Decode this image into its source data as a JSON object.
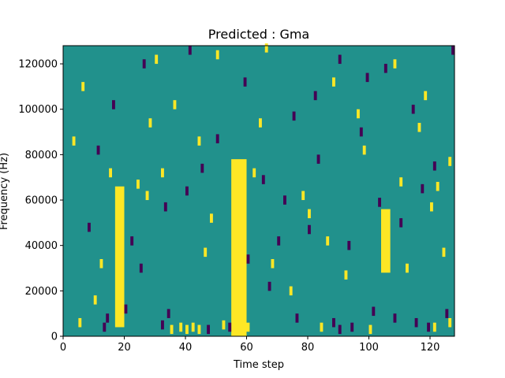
{
  "chart_data": {
    "type": "heatmap",
    "title": "Predicted : Gma",
    "xlabel": "Time step",
    "ylabel": "Frequency (Hz)",
    "xlim": [
      0,
      128
    ],
    "ylim": [
      0,
      128000
    ],
    "x_ticks": [
      0,
      20,
      40,
      60,
      80,
      100,
      120
    ],
    "y_ticks": [
      0,
      20000,
      40000,
      60000,
      80000,
      100000,
      120000
    ],
    "x_tick_labels": [
      "0",
      "20",
      "40",
      "60",
      "80",
      "100",
      "120"
    ],
    "y_tick_labels": [
      "0",
      "20000",
      "40000",
      "60000",
      "80000",
      "100000",
      "120000"
    ],
    "colormap": {
      "background": "#21918c",
      "high": "#fde725",
      "low": "#440154"
    },
    "background_level": "mid",
    "high_bands": [
      {
        "x": [
          17,
          19
        ],
        "y": [
          4000,
          66000
        ]
      },
      {
        "x": [
          55,
          59
        ],
        "y": [
          0,
          78000
        ]
      },
      {
        "x": [
          104,
          106
        ],
        "y": [
          28000,
          56000
        ]
      }
    ],
    "high_cells": [
      [
        5,
        4000
      ],
      [
        35,
        1000
      ],
      [
        38,
        2000
      ],
      [
        40,
        1000
      ],
      [
        42,
        2000
      ],
      [
        44,
        1000
      ],
      [
        52,
        3000
      ],
      [
        60,
        2000
      ],
      [
        84,
        2000
      ],
      [
        100,
        1000
      ],
      [
        121,
        2000
      ],
      [
        126,
        4000
      ],
      [
        12,
        30000
      ],
      [
        24,
        65000
      ],
      [
        28,
        92000
      ],
      [
        32,
        70000
      ],
      [
        46,
        35000
      ],
      [
        48,
        50000
      ],
      [
        62,
        70000
      ],
      [
        64,
        92000
      ],
      [
        68,
        30000
      ],
      [
        78,
        60000
      ],
      [
        86,
        40000
      ],
      [
        92,
        25000
      ],
      [
        98,
        80000
      ],
      [
        110,
        66000
      ],
      [
        116,
        90000
      ],
      [
        120,
        55000
      ],
      [
        124,
        35000
      ],
      [
        126,
        75000
      ],
      [
        3,
        84000
      ],
      [
        6,
        108000
      ],
      [
        10,
        14000
      ],
      [
        15,
        70000
      ],
      [
        27,
        60000
      ],
      [
        30,
        120000
      ],
      [
        44,
        84000
      ],
      [
        50,
        122000
      ],
      [
        66,
        125000
      ],
      [
        80,
        52000
      ],
      [
        88,
        110000
      ],
      [
        96,
        96000
      ],
      [
        108,
        118000
      ],
      [
        112,
        28000
      ],
      [
        118,
        104000
      ],
      [
        122,
        64000
      ],
      [
        74,
        18000
      ],
      [
        36,
        100000
      ]
    ],
    "low_cells": [
      [
        13,
        2000
      ],
      [
        14,
        6000
      ],
      [
        20,
        10000
      ],
      [
        32,
        3000
      ],
      [
        34,
        8000
      ],
      [
        47,
        1000
      ],
      [
        54,
        2000
      ],
      [
        67,
        20000
      ],
      [
        70,
        40000
      ],
      [
        76,
        6000
      ],
      [
        88,
        4000
      ],
      [
        90,
        1000
      ],
      [
        94,
        2000
      ],
      [
        101,
        9000
      ],
      [
        108,
        6000
      ],
      [
        115,
        4000
      ],
      [
        119,
        2000
      ],
      [
        125,
        8000
      ],
      [
        22,
        40000
      ],
      [
        25,
        28000
      ],
      [
        33,
        55000
      ],
      [
        40,
        62000
      ],
      [
        45,
        72000
      ],
      [
        50,
        85000
      ],
      [
        65,
        67000
      ],
      [
        72,
        58000
      ],
      [
        80,
        45000
      ],
      [
        83,
        76000
      ],
      [
        93,
        38000
      ],
      [
        97,
        88000
      ],
      [
        103,
        57000
      ],
      [
        110,
        48000
      ],
      [
        117,
        63000
      ],
      [
        121,
        73000
      ],
      [
        8,
        46000
      ],
      [
        11,
        80000
      ],
      [
        16,
        100000
      ],
      [
        26,
        118000
      ],
      [
        41,
        124000
      ],
      [
        59,
        110000
      ],
      [
        75,
        95000
      ],
      [
        82,
        104000
      ],
      [
        90,
        120000
      ],
      [
        99,
        112000
      ],
      [
        105,
        116000
      ],
      [
        114,
        98000
      ],
      [
        127,
        124000
      ],
      [
        60,
        32000
      ]
    ]
  }
}
